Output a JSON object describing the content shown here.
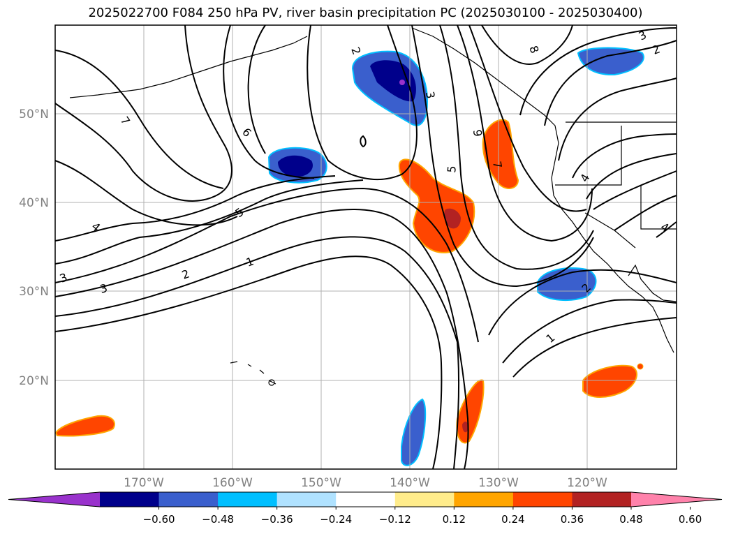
{
  "title": "2025022700 F084 250 hPa PV, river basin precipitation PC (2025030100 - 2025030400)",
  "map": {
    "lat_labels": [
      "50°N",
      "40°N",
      "30°N",
      "20°N"
    ],
    "lon_labels": [
      "170°W",
      "160°W",
      "150°W",
      "140°W",
      "130°W",
      "120°W"
    ],
    "grid": true
  },
  "contour_labels": [
    "2",
    "3",
    "8",
    "3",
    "2",
    "7",
    "6",
    "9",
    "5",
    "7",
    "4",
    "5",
    "4",
    "3",
    "3",
    "2",
    "1",
    "2",
    "1",
    "4"
  ],
  "colorbar": {
    "ticks": [
      "−0.60",
      "−0.48",
      "−0.36",
      "−0.24",
      "−0.12",
      "0.12",
      "0.24",
      "0.36",
      "0.48",
      "0.60"
    ],
    "colors": [
      "#9932cc",
      "#00008b",
      "#3a5fcd",
      "#00bfff",
      "#b0e2ff",
      "#ffffff",
      "#ffec8b",
      "#ffa500",
      "#ff4500",
      "#b22222",
      "#ff82ab"
    ]
  }
}
